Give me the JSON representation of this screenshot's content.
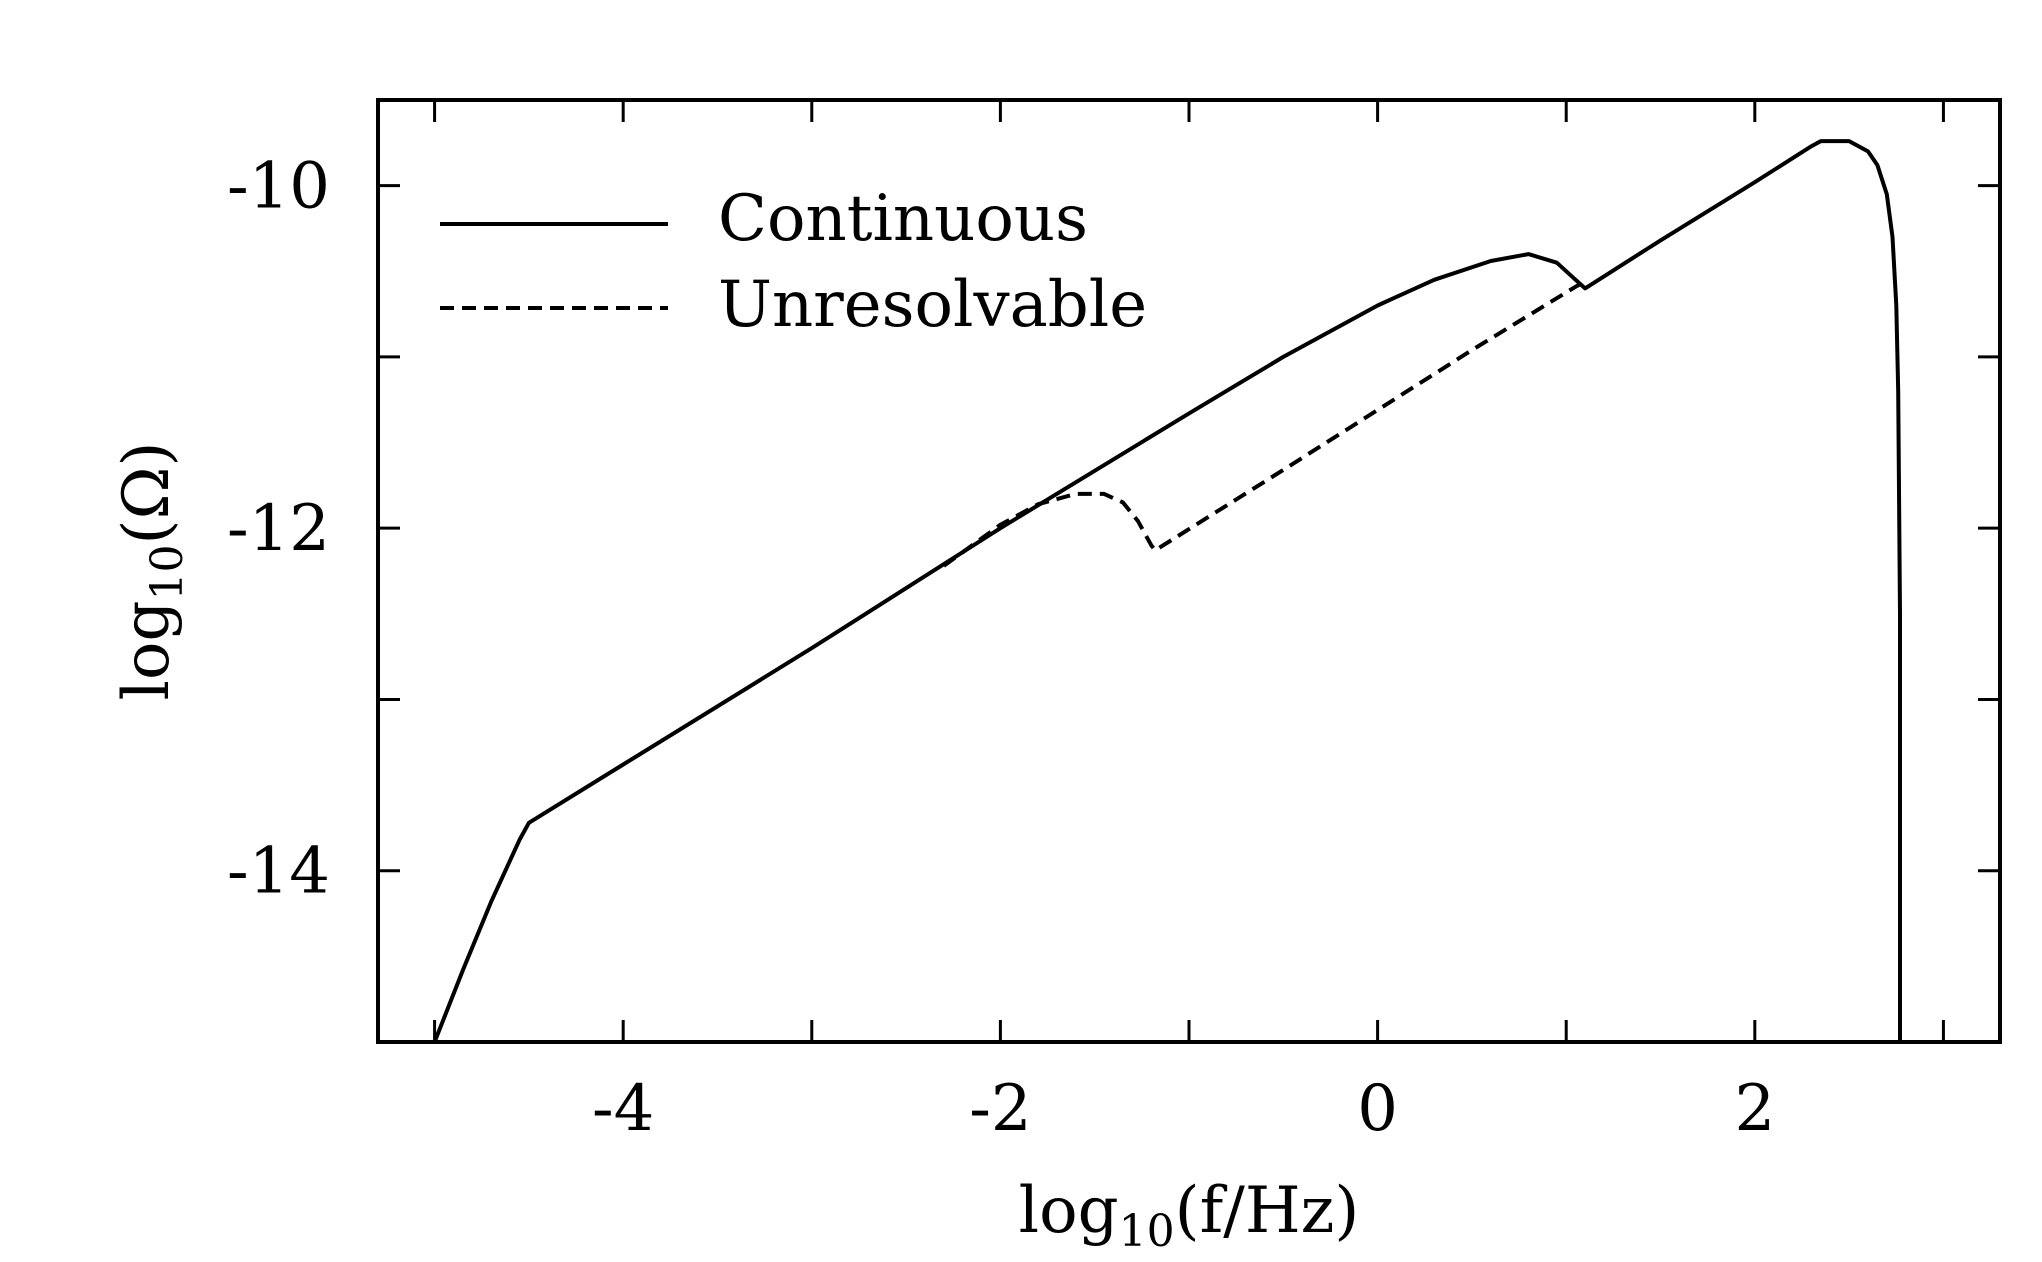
{
  "chart_data": {
    "type": "line",
    "xlabel": {
      "base": "log",
      "sub": "10",
      "arg": "(f/Hz)"
    },
    "ylabel": {
      "base": "log",
      "sub": "10",
      "arg": "(Ω)"
    },
    "xlim": [
      -5.3,
      3.3
    ],
    "ylim": [
      -15.0,
      -9.5
    ],
    "xticks": [
      -4,
      -2,
      0,
      2
    ],
    "xtick_labels": [
      "-4",
      "-2",
      "0",
      "2"
    ],
    "xminor": [
      -5,
      -3,
      -1,
      1,
      3
    ],
    "yticks": [
      -10,
      -12,
      -14
    ],
    "ytick_labels": [
      "-10",
      "-12",
      "-14"
    ],
    "yminor": [
      -11,
      -13
    ],
    "grid": false,
    "legend_position": "top-left",
    "series": [
      {
        "name": "Continuous",
        "style": "solid",
        "color": "#000000",
        "x": [
          -5.0,
          -4.85,
          -4.7,
          -4.55,
          -4.5,
          -4.0,
          -3.0,
          -2.0,
          -1.0,
          -0.5,
          0.0,
          0.3,
          0.6,
          0.8,
          0.95,
          1.05,
          1.1,
          1.5,
          2.0,
          2.3,
          2.35,
          2.5,
          2.6,
          2.65,
          2.7,
          2.73,
          2.75,
          2.76,
          2.77,
          2.77
        ],
        "y": [
          -15.0,
          -14.58,
          -14.18,
          -13.82,
          -13.72,
          -13.38,
          -12.7,
          -12.0,
          -11.33,
          -11.0,
          -10.7,
          -10.55,
          -10.44,
          -10.4,
          -10.45,
          -10.55,
          -10.6,
          -10.32,
          -9.98,
          -9.77,
          -9.74,
          -9.74,
          -9.8,
          -9.88,
          -10.05,
          -10.3,
          -10.7,
          -11.2,
          -12.5,
          -15.0
        ]
      },
      {
        "name": "Unresolvable",
        "style": "dashed",
        "color": "#000000",
        "x": [
          -2.3,
          -2.0,
          -1.8,
          -1.6,
          -1.45,
          -1.35,
          -1.27,
          -1.2,
          -1.18,
          -0.5,
          0.0,
          0.5,
          1.05,
          1.1
        ],
        "y": [
          -12.22,
          -11.98,
          -11.86,
          -11.8,
          -11.8,
          -11.85,
          -11.96,
          -12.1,
          -12.13,
          -11.66,
          -11.31,
          -10.96,
          -10.59,
          -10.56
        ]
      }
    ]
  }
}
